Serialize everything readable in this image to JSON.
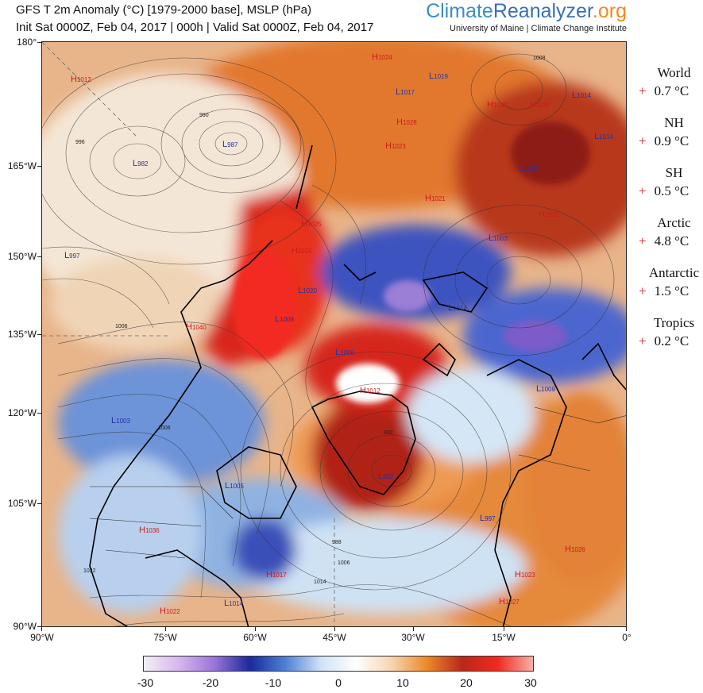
{
  "header": {
    "title_line1": "GFS T 2m Anomaly (°C) [1979-2000 base], MSLP (hPa)",
    "title_line2": "Init Sat 0000Z, Feb 04, 2017 | 000h | Valid Sat 0000Z, Feb 04, 2017"
  },
  "brand": {
    "part1": "Climate",
    "part2": "Reanalyzer",
    "part3": ".org",
    "subtitle": "University of Maine | Climate Change Institute",
    "colors": {
      "climate": "#3a8fc4",
      "reanalyzer": "#3a6fb7",
      "org": "#f08a1c"
    }
  },
  "map": {
    "left_axis_labels": [
      "180°",
      "165°W",
      "150°W",
      "135°W",
      "120°W",
      "105°W",
      "90°W"
    ],
    "bottom_axis_labels": [
      "90°W",
      "75°W",
      "60°W",
      "45°W",
      "30°W",
      "15°W",
      "0°"
    ],
    "pressure_centers": [
      {
        "type": "H",
        "value": "1012"
      },
      {
        "type": "H",
        "value": "1024"
      },
      {
        "type": "L",
        "value": "1019"
      },
      {
        "type": "L",
        "value": "1017"
      },
      {
        "type": "L",
        "value": "1014"
      },
      {
        "type": "H",
        "value": "1033"
      },
      {
        "type": "H",
        "value": "1031"
      },
      {
        "type": "H",
        "value": "1028"
      },
      {
        "type": "H",
        "value": "1023"
      },
      {
        "type": "L",
        "value": "1014"
      },
      {
        "type": "L",
        "value": "987"
      },
      {
        "type": "L",
        "value": "982"
      },
      {
        "type": "L",
        "value": "1012"
      },
      {
        "type": "H",
        "value": "1021"
      },
      {
        "type": "H",
        "value": "1031"
      },
      {
        "type": "H",
        "value": "1025"
      },
      {
        "type": "L",
        "value": "1003"
      },
      {
        "type": "L",
        "value": "997"
      },
      {
        "type": "H",
        "value": "1026"
      },
      {
        "type": "L",
        "value": "1020"
      },
      {
        "type": "L",
        "value": "1008"
      },
      {
        "type": "H",
        "value": "1040"
      },
      {
        "type": "L",
        "value": "1006"
      },
      {
        "type": "L",
        "value": "1014"
      },
      {
        "type": "H",
        "value": "1012"
      },
      {
        "type": "L",
        "value": "1009"
      },
      {
        "type": "L",
        "value": "1003"
      },
      {
        "type": "L",
        "value": "982"
      },
      {
        "type": "L",
        "value": "1005"
      },
      {
        "type": "L",
        "value": "997"
      },
      {
        "type": "H",
        "value": "1036"
      },
      {
        "type": "H",
        "value": "1017"
      },
      {
        "type": "H",
        "value": "1026"
      },
      {
        "type": "H",
        "value": "1023"
      },
      {
        "type": "L",
        "value": "1014"
      },
      {
        "type": "H",
        "value": "1022"
      },
      {
        "type": "H",
        "value": "1027"
      }
    ],
    "contour_labels": [
      "990",
      "996",
      "1006",
      "1008",
      "1014",
      "988",
      "1006",
      "1022",
      "992",
      "1006"
    ]
  },
  "stats": [
    {
      "region": "World",
      "sign": "+",
      "value": "0.7 °C"
    },
    {
      "region": "NH",
      "sign": "+",
      "value": "0.9 °C"
    },
    {
      "region": "SH",
      "sign": "+",
      "value": "0.5 °C"
    },
    {
      "region": "Arctic",
      "sign": "+",
      "value": "4.8 °C"
    },
    {
      "region": "Antarctic",
      "sign": "+",
      "value": "1.5 °C"
    },
    {
      "region": "Tropics",
      "sign": "+",
      "value": "0.2 °C"
    }
  ],
  "colorbar": {
    "labels": [
      "-30",
      "-20",
      "-10",
      "0",
      "10",
      "20",
      "30"
    ],
    "min": -30,
    "max": 30,
    "stops": [
      "#f4eef8",
      "#d6b6ee",
      "#9a74d8",
      "#1a2a9a",
      "#4f7fd6",
      "#cfe2f6",
      "#ffffff",
      "#f6d6b0",
      "#ec8a2a",
      "#b8281a",
      "#f02a20",
      "#f6b0a8"
    ]
  }
}
